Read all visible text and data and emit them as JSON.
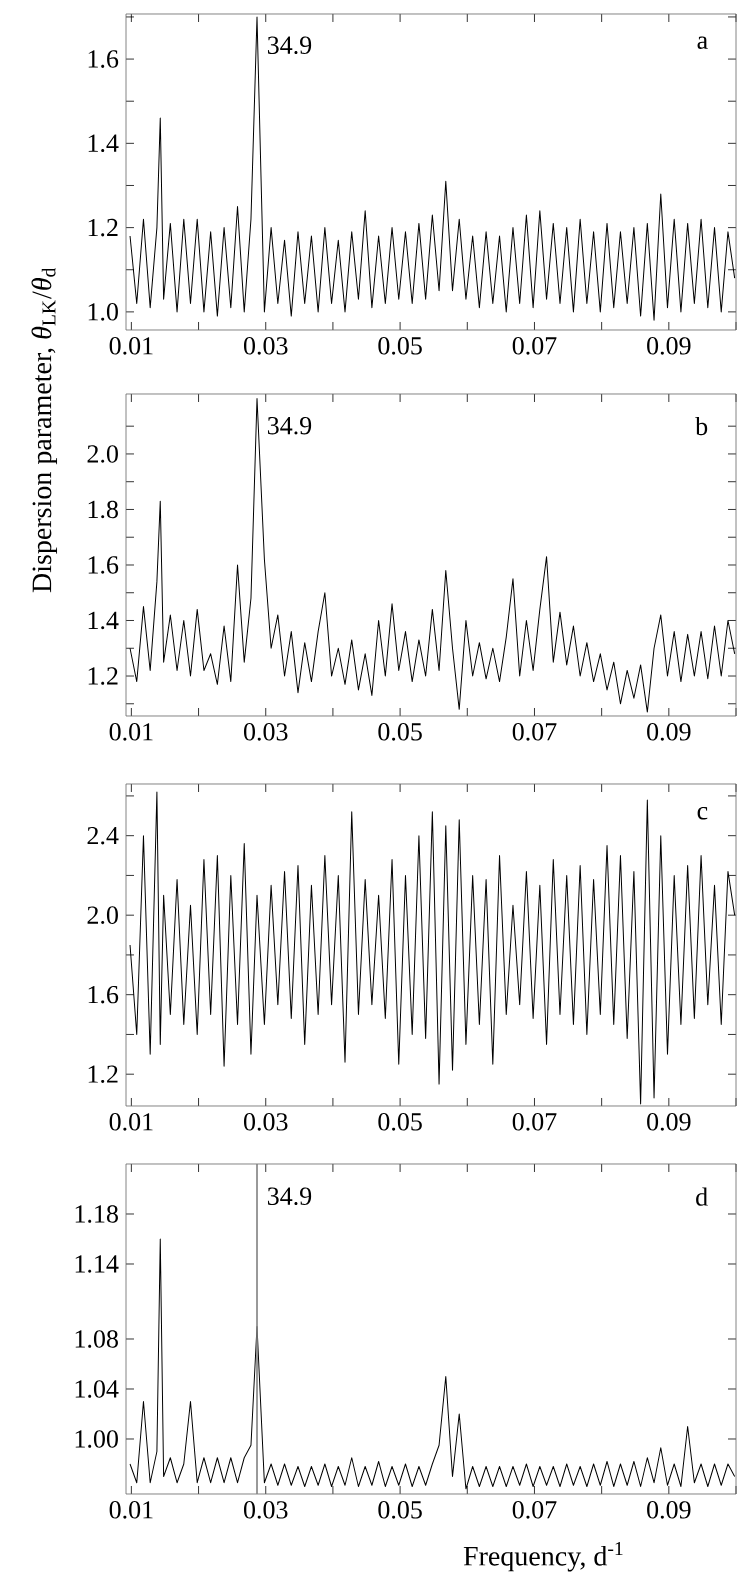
{
  "chart_data": [
    {
      "type": "line",
      "ylabel": "Dispersion parameter, *θ*$_{LK}$/*θ*$_{d}$",
      "x": [
        0.0098,
        0.0108,
        0.0118,
        0.0128,
        0.0138,
        0.0143,
        0.0148,
        0.0158,
        0.0168,
        0.0178,
        0.0188,
        0.0198,
        0.0208,
        0.0218,
        0.0228,
        0.0238,
        0.0248,
        0.0258,
        0.0268,
        0.0278,
        0.0287,
        0.0298,
        0.0308,
        0.0318,
        0.0328,
        0.0338,
        0.0348,
        0.0358,
        0.0368,
        0.0378,
        0.0388,
        0.0398,
        0.0408,
        0.0418,
        0.0428,
        0.0438,
        0.0448,
        0.0458,
        0.0468,
        0.0478,
        0.0488,
        0.0498,
        0.0508,
        0.0518,
        0.0528,
        0.0538,
        0.0548,
        0.0558,
        0.0568,
        0.0578,
        0.0588,
        0.0598,
        0.0608,
        0.0618,
        0.0628,
        0.0638,
        0.0648,
        0.0658,
        0.0668,
        0.0678,
        0.0688,
        0.0698,
        0.0708,
        0.0718,
        0.0728,
        0.0738,
        0.0748,
        0.0758,
        0.0768,
        0.0778,
        0.0788,
        0.0798,
        0.0808,
        0.0818,
        0.0828,
        0.0838,
        0.0848,
        0.0858,
        0.0868,
        0.0878,
        0.0888,
        0.0898,
        0.0908,
        0.0918,
        0.0928,
        0.0938,
        0.0948,
        0.0958,
        0.0968,
        0.0978,
        0.0988,
        0.0998
      ],
      "series": [
        {
          "color": "#000000",
          "values": [
            1.18,
            1.02,
            1.22,
            1.01,
            1.2,
            1.46,
            1.03,
            1.21,
            1.0,
            1.22,
            1.02,
            1.22,
            1.0,
            1.19,
            0.99,
            1.2,
            1.01,
            1.25,
            1.0,
            1.22,
            1.7,
            1.0,
            1.2,
            1.02,
            1.17,
            0.99,
            1.19,
            1.02,
            1.18,
            1.0,
            1.2,
            1.02,
            1.17,
            1.0,
            1.19,
            1.03,
            1.24,
            1.01,
            1.18,
            1.02,
            1.2,
            1.03,
            1.19,
            1.02,
            1.21,
            1.03,
            1.23,
            1.05,
            1.31,
            1.05,
            1.22,
            1.03,
            1.18,
            1.01,
            1.19,
            1.02,
            1.18,
            1.0,
            1.2,
            1.02,
            1.23,
            1.01,
            1.24,
            1.03,
            1.21,
            1.02,
            1.2,
            1.0,
            1.22,
            1.02,
            1.19,
            1.0,
            1.21,
            1.01,
            1.19,
            1.02,
            1.2,
            0.99,
            1.21,
            0.98,
            1.28,
            1.01,
            1.22,
            1.0,
            1.21,
            1.02,
            1.22,
            1.01,
            1.2,
            1.0,
            1.19,
            1.08
          ]
        }
      ],
      "xlim": [
        0.0092,
        0.1
      ],
      "ylim": [
        0.957,
        1.707
      ],
      "xticks": [
        0.01,
        {
          "value": 0.02,
          "label": null
        },
        0.03,
        {
          "value": 0.04,
          "label": null
        },
        0.05,
        {
          "value": 0.06,
          "label": null
        },
        0.07,
        {
          "value": 0.08,
          "label": null
        },
        0.09,
        {
          "value": 0.1,
          "label": null
        }
      ],
      "yticks": [
        {
          "value": 1.0,
          "label": "1.0"
        },
        {
          "value": 1.1,
          "label": null
        },
        1.2,
        {
          "value": 1.3,
          "label": null
        },
        1.4,
        {
          "value": 1.5,
          "label": null
        },
        1.6,
        {
          "value": 1.7,
          "label": null
        }
      ],
      "annotations": [
        "34.9",
        "a"
      ]
    },
    {
      "type": "line",
      "x": [
        0.0098,
        0.0108,
        0.0118,
        0.0128,
        0.0138,
        0.0143,
        0.0148,
        0.0158,
        0.0168,
        0.0178,
        0.0188,
        0.0198,
        0.0208,
        0.0218,
        0.0228,
        0.0238,
        0.0248,
        0.0258,
        0.0268,
        0.0278,
        0.0287,
        0.0298,
        0.0308,
        0.0318,
        0.0328,
        0.0338,
        0.0348,
        0.0358,
        0.0368,
        0.0378,
        0.0388,
        0.0398,
        0.0408,
        0.0418,
        0.0428,
        0.0438,
        0.0448,
        0.0458,
        0.0468,
        0.0478,
        0.0488,
        0.0498,
        0.0508,
        0.0518,
        0.0528,
        0.0538,
        0.0548,
        0.0558,
        0.0568,
        0.0578,
        0.0588,
        0.0598,
        0.0608,
        0.0618,
        0.0628,
        0.0638,
        0.0648,
        0.0658,
        0.0668,
        0.0678,
        0.0688,
        0.0698,
        0.0708,
        0.0718,
        0.0728,
        0.0738,
        0.0748,
        0.0758,
        0.0768,
        0.0778,
        0.0788,
        0.0798,
        0.0808,
        0.0818,
        0.0828,
        0.0838,
        0.0848,
        0.0858,
        0.0868,
        0.0878,
        0.0888,
        0.0898,
        0.0908,
        0.0918,
        0.0928,
        0.0938,
        0.0948,
        0.0958,
        0.0968,
        0.0978,
        0.0988,
        0.0998
      ],
      "series": [
        {
          "color": "#000000",
          "values": [
            1.3,
            1.18,
            1.45,
            1.22,
            1.54,
            1.83,
            1.25,
            1.42,
            1.22,
            1.4,
            1.2,
            1.44,
            1.22,
            1.28,
            1.17,
            1.38,
            1.18,
            1.6,
            1.25,
            1.48,
            2.2,
            1.62,
            1.3,
            1.42,
            1.2,
            1.36,
            1.14,
            1.32,
            1.18,
            1.36,
            1.5,
            1.2,
            1.3,
            1.17,
            1.33,
            1.15,
            1.28,
            1.13,
            1.4,
            1.2,
            1.46,
            1.22,
            1.36,
            1.18,
            1.33,
            1.2,
            1.44,
            1.22,
            1.58,
            1.3,
            1.08,
            1.4,
            1.2,
            1.32,
            1.19,
            1.3,
            1.18,
            1.34,
            1.55,
            1.2,
            1.4,
            1.22,
            1.44,
            1.63,
            1.25,
            1.43,
            1.24,
            1.38,
            1.2,
            1.32,
            1.18,
            1.28,
            1.15,
            1.25,
            1.1,
            1.22,
            1.12,
            1.24,
            1.07,
            1.3,
            1.42,
            1.2,
            1.36,
            1.18,
            1.35,
            1.2,
            1.36,
            1.19,
            1.38,
            1.2,
            1.4,
            1.28
          ]
        }
      ],
      "xlim": [
        0.0092,
        0.1
      ],
      "ylim": [
        1.056,
        2.216
      ],
      "xticks": [
        0.01,
        {
          "value": 0.02,
          "label": null
        },
        0.03,
        {
          "value": 0.04,
          "label": null
        },
        0.05,
        {
          "value": 0.06,
          "label": null
        },
        0.07,
        {
          "value": 0.08,
          "label": null
        },
        0.09,
        {
          "value": 0.1,
          "label": null
        }
      ],
      "yticks": [
        {
          "value": 1.1,
          "label": null
        },
        1.2,
        {
          "value": 1.3,
          "label": null
        },
        1.4,
        {
          "value": 1.5,
          "label": null
        },
        1.6,
        {
          "value": 1.7,
          "label": null
        },
        1.8,
        {
          "value": 1.9,
          "label": null
        },
        {
          "value": 2.0,
          "label": "2.0"
        },
        {
          "value": 2.1,
          "label": null
        }
      ],
      "annotations": [
        "34.9",
        "b"
      ]
    },
    {
      "type": "line",
      "x": [
        0.0098,
        0.0108,
        0.0118,
        0.0128,
        0.0138,
        0.0143,
        0.0148,
        0.0158,
        0.0168,
        0.0178,
        0.0188,
        0.0198,
        0.0208,
        0.0218,
        0.0228,
        0.0238,
        0.0248,
        0.0258,
        0.0268,
        0.0278,
        0.0287,
        0.0298,
        0.0308,
        0.0318,
        0.0328,
        0.0338,
        0.0348,
        0.0358,
        0.0368,
        0.0378,
        0.0388,
        0.0398,
        0.0408,
        0.0418,
        0.0428,
        0.0438,
        0.0448,
        0.0458,
        0.0468,
        0.0478,
        0.0488,
        0.0498,
        0.0508,
        0.0518,
        0.0528,
        0.0538,
        0.0548,
        0.0558,
        0.0568,
        0.0578,
        0.0588,
        0.0598,
        0.0608,
        0.0618,
        0.0628,
        0.0638,
        0.0648,
        0.0658,
        0.0668,
        0.0678,
        0.0688,
        0.0698,
        0.0708,
        0.0718,
        0.0728,
        0.0738,
        0.0748,
        0.0758,
        0.0768,
        0.0778,
        0.0788,
        0.0798,
        0.0808,
        0.0818,
        0.0828,
        0.0838,
        0.0848,
        0.0858,
        0.0868,
        0.0878,
        0.0888,
        0.0898,
        0.0908,
        0.0918,
        0.0928,
        0.0938,
        0.0948,
        0.0958,
        0.0968,
        0.0978,
        0.0988,
        0.0998
      ],
      "series": [
        {
          "color": "#000000",
          "values": [
            1.85,
            1.4,
            2.4,
            1.3,
            2.62,
            1.35,
            2.1,
            1.5,
            2.18,
            1.45,
            2.05,
            1.4,
            2.28,
            1.5,
            2.3,
            1.24,
            2.2,
            1.45,
            2.36,
            1.3,
            2.1,
            1.45,
            2.15,
            1.55,
            2.22,
            1.48,
            2.25,
            1.35,
            2.15,
            1.5,
            2.3,
            1.55,
            2.2,
            1.26,
            2.52,
            1.5,
            2.18,
            1.55,
            2.1,
            1.48,
            2.28,
            1.25,
            2.2,
            1.4,
            2.4,
            1.38,
            2.52,
            1.15,
            2.45,
            1.22,
            2.48,
            1.35,
            2.2,
            1.45,
            2.18,
            1.25,
            2.3,
            1.5,
            2.05,
            1.55,
            2.22,
            1.48,
            2.15,
            1.35,
            2.28,
            1.5,
            2.2,
            1.45,
            2.25,
            1.4,
            2.18,
            1.5,
            2.35,
            1.45,
            2.3,
            1.38,
            2.22,
            1.05,
            2.58,
            1.08,
            2.4,
            1.3,
            2.2,
            1.45,
            2.25,
            1.48,
            2.3,
            1.55,
            2.15,
            1.45,
            2.22,
            2.0
          ]
        }
      ],
      "xlim": [
        0.0092,
        0.1
      ],
      "ylim": [
        1.04,
        2.66
      ],
      "xticks": [
        0.01,
        {
          "value": 0.02,
          "label": null
        },
        0.03,
        {
          "value": 0.04,
          "label": null
        },
        0.05,
        {
          "value": 0.06,
          "label": null
        },
        0.07,
        {
          "value": 0.08,
          "label": null
        },
        0.09,
        {
          "value": 0.1,
          "label": null
        }
      ],
      "yticks": [
        1.2,
        {
          "value": 1.4,
          "label": null
        },
        1.6,
        {
          "value": 1.8,
          "label": null
        },
        {
          "value": 2.0,
          "label": "2.0"
        },
        {
          "value": 2.2,
          "label": null
        },
        2.4,
        {
          "value": 2.6,
          "label": null
        }
      ],
      "annotations": [
        "c"
      ]
    },
    {
      "type": "line",
      "xlabel": "Frequency, d$^{-1}$",
      "x": [
        0.0098,
        0.0108,
        0.0118,
        0.0128,
        0.0138,
        0.0143,
        0.0148,
        0.0158,
        0.0168,
        0.0178,
        0.0188,
        0.0198,
        0.0208,
        0.0218,
        0.0228,
        0.0238,
        0.0248,
        0.0258,
        0.0268,
        0.0278,
        0.0287,
        0.0298,
        0.0308,
        0.0318,
        0.0328,
        0.0338,
        0.0348,
        0.0358,
        0.0368,
        0.0378,
        0.0388,
        0.0398,
        0.0408,
        0.0418,
        0.0428,
        0.0438,
        0.0448,
        0.0458,
        0.0468,
        0.0478,
        0.0488,
        0.0498,
        0.0508,
        0.0518,
        0.0528,
        0.0538,
        0.0548,
        0.0558,
        0.0568,
        0.0578,
        0.0588,
        0.0598,
        0.0608,
        0.0618,
        0.0628,
        0.0638,
        0.0648,
        0.0658,
        0.0668,
        0.0678,
        0.0688,
        0.0698,
        0.0708,
        0.0718,
        0.0728,
        0.0738,
        0.0748,
        0.0758,
        0.0768,
        0.0778,
        0.0788,
        0.0798,
        0.0808,
        0.0818,
        0.0828,
        0.0838,
        0.0848,
        0.0858,
        0.0868,
        0.0878,
        0.0888,
        0.0898,
        0.0908,
        0.0918,
        0.0928,
        0.0938,
        0.0948,
        0.0958,
        0.0968,
        0.0978,
        0.0988,
        0.0998
      ],
      "series": [
        {
          "color": "#000000",
          "values": [
            0.98,
            0.965,
            1.03,
            0.965,
            0.99,
            1.16,
            0.97,
            0.985,
            0.965,
            0.98,
            1.03,
            0.965,
            0.985,
            0.965,
            0.985,
            0.965,
            0.985,
            0.965,
            0.985,
            0.995,
            1.09,
            0.965,
            0.98,
            0.963,
            0.98,
            0.963,
            0.978,
            0.962,
            0.978,
            0.963,
            0.98,
            0.962,
            0.978,
            0.963,
            0.985,
            0.962,
            0.978,
            0.963,
            0.982,
            0.962,
            0.978,
            0.963,
            0.98,
            0.962,
            0.978,
            0.963,
            0.98,
            0.995,
            1.05,
            0.97,
            1.02,
            0.96,
            0.978,
            0.962,
            0.978,
            0.962,
            0.978,
            0.962,
            0.978,
            0.963,
            0.98,
            0.962,
            0.978,
            0.963,
            0.978,
            0.962,
            0.98,
            0.963,
            0.978,
            0.962,
            0.98,
            0.963,
            0.982,
            0.962,
            0.98,
            0.963,
            0.982,
            0.962,
            0.985,
            0.965,
            0.993,
            0.963,
            0.98,
            0.962,
            1.01,
            0.965,
            0.98,
            0.962,
            0.98,
            0.963,
            0.98,
            0.97
          ]
        }
      ],
      "xlim": [
        0.0092,
        0.1
      ],
      "ylim": [
        0.956,
        1.22
      ],
      "xticks": [
        0.01,
        {
          "value": 0.02,
          "label": null
        },
        0.03,
        {
          "value": 0.04,
          "label": null
        },
        0.05,
        {
          "value": 0.06,
          "label": null
        },
        0.07,
        {
          "value": 0.08,
          "label": null
        },
        0.09,
        {
          "value": 0.1,
          "label": null
        }
      ],
      "yticks": [
        {
          "value": 1.0,
          "label": "1.00"
        },
        1.04,
        1.08,
        1.14,
        1.18
      ],
      "ref_lines": [
        {
          "axis": "x",
          "value": 0.0287,
          "color": "#808080"
        }
      ],
      "annotations": [
        "34.9",
        "d"
      ]
    }
  ]
}
